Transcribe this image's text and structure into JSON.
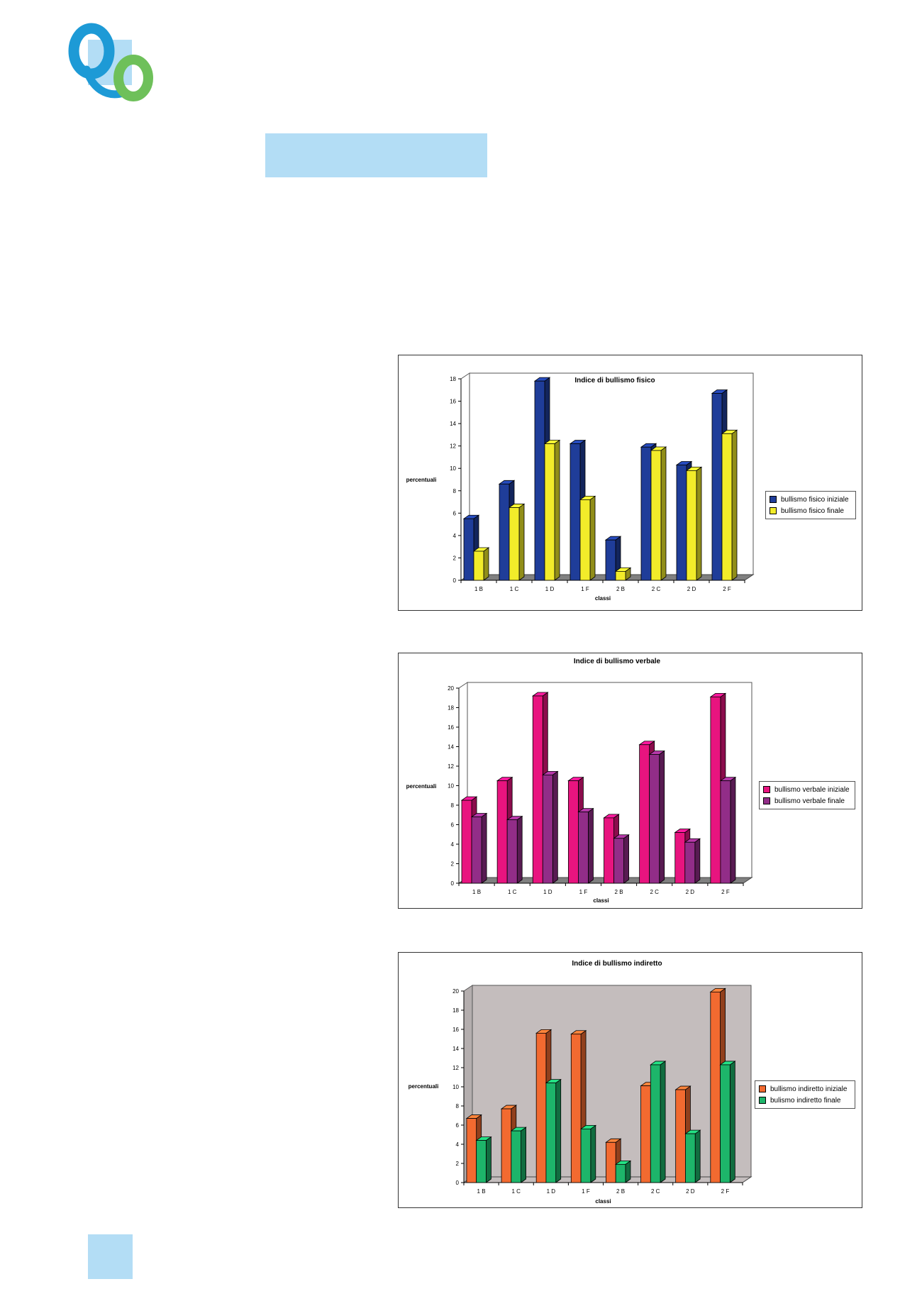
{
  "chart_data": [
    {
      "type": "bar",
      "title": "Indice di bullismo fisico",
      "xlabel": "classi",
      "ylabel": "percentuali",
      "ylim": [
        0,
        18
      ],
      "yticks": [
        0,
        2,
        4,
        6,
        8,
        10,
        12,
        14,
        16,
        18
      ],
      "categories": [
        "1 B",
        "1 C",
        "1 D",
        "1 F",
        "2 B",
        "2 C",
        "2 D",
        "2 F"
      ],
      "series": [
        {
          "name": "bullismo fisico iniziale",
          "color": "#1f3d99",
          "values": [
            5.5,
            8.6,
            17.8,
            12.2,
            3.6,
            11.9,
            10.3,
            16.7
          ]
        },
        {
          "name": "bullismo fisico finale",
          "color": "#f2ec2a",
          "values": [
            2.6,
            6.5,
            12.2,
            7.2,
            0.8,
            11.6,
            9.8,
            13.1
          ]
        }
      ],
      "wall": "#ffffff",
      "floor": "#808080",
      "legend": "right"
    },
    {
      "type": "bar",
      "title": "Indice di bullismo verbale",
      "xlabel": "classi",
      "ylabel": "percentuali",
      "ylim": [
        0,
        20
      ],
      "yticks": [
        0,
        2,
        4,
        6,
        8,
        10,
        12,
        14,
        16,
        18,
        20
      ],
      "categories": [
        "1 B",
        "1 C",
        "1 D",
        "1 F",
        "2 B",
        "2 C",
        "2 D",
        "2 F"
      ],
      "series": [
        {
          "name": "bullismo verbale iniziale",
          "color": "#e8147f",
          "values": [
            8.5,
            10.5,
            19.2,
            10.5,
            6.7,
            14.2,
            5.2,
            19.1
          ]
        },
        {
          "name": "bullismo verbale finale",
          "color": "#922d88",
          "values": [
            6.8,
            6.5,
            11.1,
            7.3,
            4.6,
            13.2,
            4.2,
            10.5
          ]
        }
      ],
      "wall": "#ffffff",
      "floor": "#808080",
      "legend": "right"
    },
    {
      "type": "bar",
      "title": "Indice di bullismo indiretto",
      "xlabel": "classi",
      "ylabel": "percentuali",
      "ylim": [
        0,
        20
      ],
      "yticks": [
        0,
        2,
        4,
        6,
        8,
        10,
        12,
        14,
        16,
        18,
        20
      ],
      "categories": [
        "1 B",
        "1 C",
        "1 D",
        "1 F",
        "2 B",
        "2 C",
        "2 D",
        "2 F"
      ],
      "series": [
        {
          "name": "bullismo indiretto iniziale",
          "color": "#f26a30",
          "values": [
            6.7,
            7.7,
            15.6,
            15.5,
            4.2,
            10.1,
            9.7,
            19.9
          ]
        },
        {
          "name": "bulismo indiretto finale",
          "color": "#1db56a",
          "values": [
            4.4,
            5.4,
            10.4,
            5.6,
            1.9,
            12.3,
            5.1,
            12.3
          ]
        }
      ],
      "wall": "#c4bdbd",
      "floor": "#c4bdbd",
      "legend": "right"
    }
  ]
}
